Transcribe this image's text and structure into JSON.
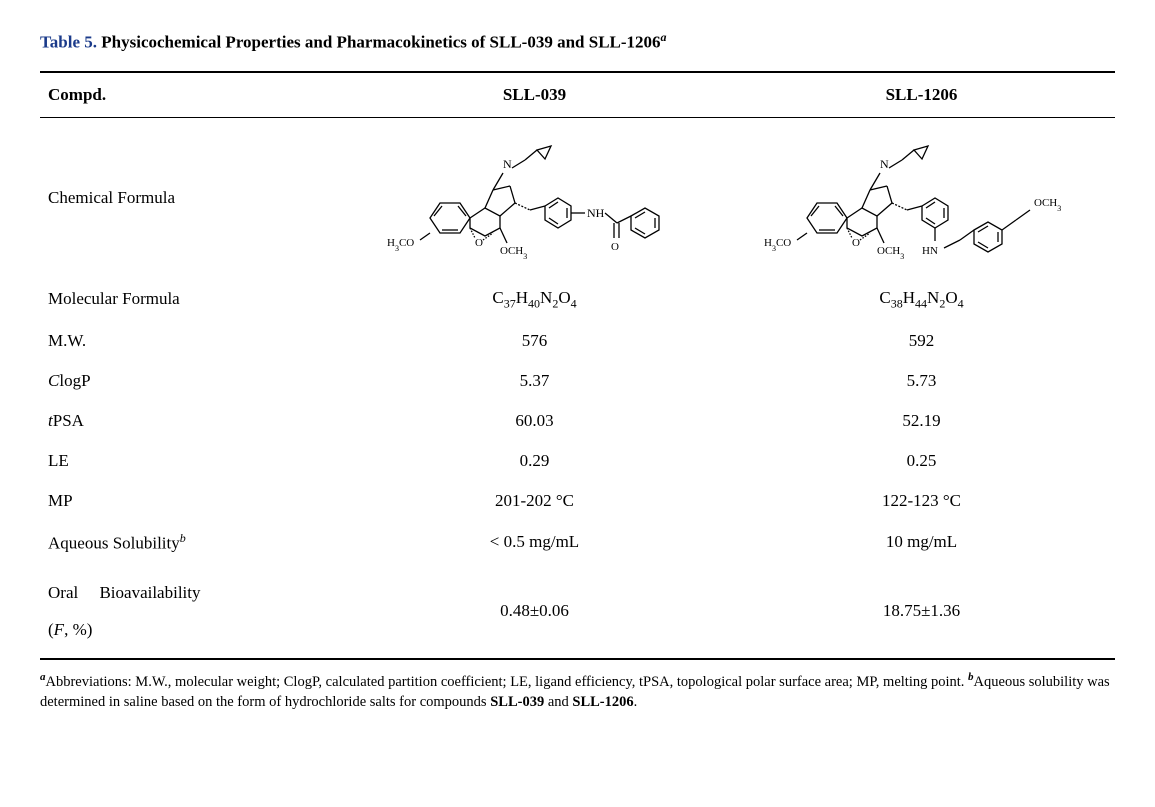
{
  "title": {
    "prefix": "Table 5.",
    "text": "Physicochemical Properties and Pharmacokinetics of SLL-039 and SLL-1206",
    "superscript": "a"
  },
  "columns": {
    "label": "Compd.",
    "col1": "SLL-039",
    "col2": "SLL-1206"
  },
  "rows": [
    {
      "label": "Chemical Formula",
      "col1": "",
      "col2": "",
      "is_structure": true
    },
    {
      "label": "Molecular Formula",
      "col1": "C37H40N2O4",
      "col2": "C38H44N2O4",
      "is_formula": true,
      "formula1": {
        "C": "37",
        "H": "40",
        "N": "2",
        "O": "4"
      },
      "formula2": {
        "C": "38",
        "H": "44",
        "N": "2",
        "O": "4"
      }
    },
    {
      "label": "M.W.",
      "col1": "576",
      "col2": "592"
    },
    {
      "label": "ClogP",
      "label_italic_first": true,
      "col1": "5.37",
      "col2": "5.73"
    },
    {
      "label": "tPSA",
      "label_italic_first": true,
      "col1": "60.03",
      "col2": "52.19"
    },
    {
      "label": "LE",
      "col1": "0.29",
      "col2": "0.25"
    },
    {
      "label": "MP",
      "col1": "201-202 °C",
      "col2": "122-123 °C"
    },
    {
      "label": "Aqueous Solubility",
      "label_super": "b",
      "col1": "< 0.5 mg/mL",
      "col2": "10 mg/mL"
    },
    {
      "label": "Oral Bioavailability (F, %)",
      "label_bioavail": true,
      "col1": "0.48±0.06",
      "col2": "18.75±1.36"
    }
  ],
  "structures": {
    "col1_atoms": {
      "left_ome": "H3CO",
      "center_ome": "OCH3",
      "n": "N",
      "nh": "NH",
      "o": "O"
    },
    "col2_atoms": {
      "left_ome": "H3CO",
      "center_ome": "OCH3",
      "n": "N",
      "hn": "HN",
      "right_ome": "OCH3"
    }
  },
  "footnotes": {
    "a": "Abbreviations: M.W., molecular weight; ClogP, calculated partition coefficient; LE, ligand efficiency, tPSA, topological polar surface area; MP, melting point.",
    "b": "Aqueous solubility was determined in saline based on the form of hydrochloride salts for compounds",
    "b_bold1": "SLL-039",
    "b_and": "and",
    "b_bold2": "SLL-1206"
  },
  "style": {
    "background": "#ffffff",
    "text_color": "#000000",
    "table_num_color": "#1a3a8a",
    "rule_color": "#000000",
    "font_family": "Times New Roman"
  }
}
